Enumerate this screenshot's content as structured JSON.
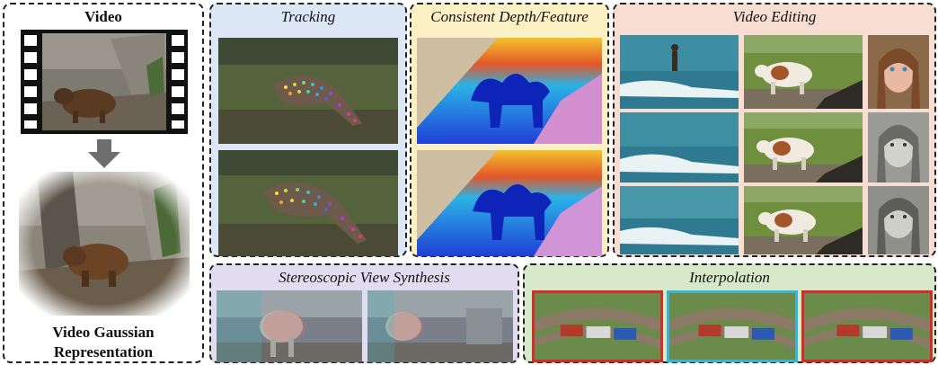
{
  "panels": {
    "video": {
      "title": "Video",
      "caption_line1": "Video Gaussian",
      "caption_line2": "Representation",
      "bg": "#ffffff"
    },
    "tracking": {
      "title": "Tracking",
      "bg": "#dbe7f4"
    },
    "depth": {
      "title": "Consistent Depth/Feature",
      "bg": "#fbf0c4"
    },
    "editing": {
      "title": "Video Editing",
      "bg": "#f8ddd2"
    },
    "stereo": {
      "title": "Stereoscopic View Synthesis",
      "bg": "#e2dcf1"
    },
    "interp": {
      "title": "Interpolation",
      "bg": "#d7e9c8"
    }
  },
  "colors": {
    "arrow": "#6e6e6e",
    "frame_red": "#d62b2b",
    "frame_cyan": "#39b4d9"
  }
}
